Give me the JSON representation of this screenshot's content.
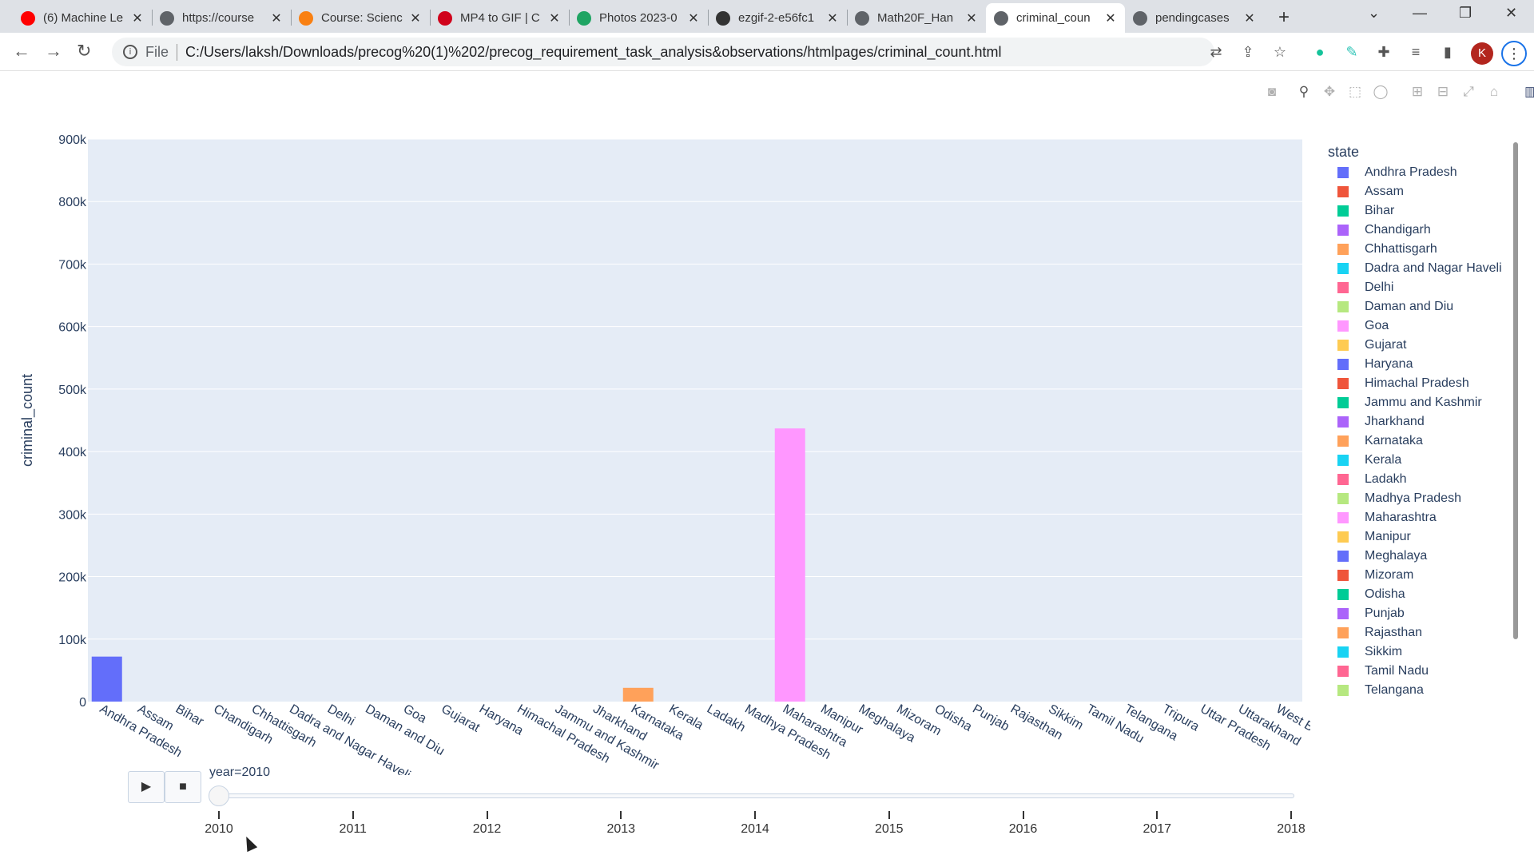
{
  "browser": {
    "tabs": [
      {
        "title": "(6) Machine Le",
        "icon": "youtube-icon",
        "color": "#ff0000"
      },
      {
        "title": "https://course",
        "icon": "globe-icon",
        "color": "#5f6368"
      },
      {
        "title": "Course: Scienc",
        "icon": "moodle-icon",
        "color": "#f98012"
      },
      {
        "title": "MP4 to GIF | C",
        "icon": "cloud-convert-icon",
        "color": "#d0021b"
      },
      {
        "title": "Photos 2023-0",
        "icon": "google-drive-icon",
        "color": "#1fa463"
      },
      {
        "title": "ezgif-2-e56fc1",
        "icon": "ezgif-icon",
        "color": "#333333"
      },
      {
        "title": "Math20F_Han",
        "icon": "globe-icon",
        "color": "#5f6368"
      },
      {
        "title": "criminal_coun",
        "icon": "globe-icon",
        "color": "#5f6368",
        "active": true
      },
      {
        "title": "pendingcases",
        "icon": "globe-icon",
        "color": "#5f6368"
      }
    ],
    "address": {
      "scheme": "File",
      "url": "C:/Users/laksh/Downloads/precog%20(1)%202/precog_requirement_task_analysis&observations/htmlpages/criminal_count.html"
    },
    "profile_initial": "K"
  },
  "chart_data": {
    "type": "bar",
    "title": "",
    "xlabel": "state",
    "ylabel": "criminal_count",
    "ylim": [
      0,
      900000
    ],
    "yticks": [
      "0",
      "100k",
      "200k",
      "300k",
      "400k",
      "500k",
      "600k",
      "700k",
      "800k",
      "900k"
    ],
    "grid": true,
    "legend_title": "state",
    "legend_position": "right",
    "categories": [
      "Andhra Pradesh",
      "Assam",
      "Bihar",
      "Chandigarh",
      "Chhattisgarh",
      "Dadra and Nagar Haveli",
      "Delhi",
      "Daman and Diu",
      "Goa",
      "Gujarat",
      "Haryana",
      "Himachal Pradesh",
      "Jammu and Kashmir",
      "Jharkhand",
      "Karnataka",
      "Kerala",
      "Ladakh",
      "Madhya Pradesh",
      "Maharashtra",
      "Manipur",
      "Meghalaya",
      "Mizoram",
      "Odisha",
      "Punjab",
      "Rajasthan",
      "Sikkim",
      "Tamil Nadu",
      "Telangana",
      "Tripura",
      "Uttar Pradesh",
      "Uttarakhand",
      "West Bengal"
    ],
    "values": [
      72000,
      0,
      0,
      0,
      0,
      0,
      0,
      0,
      0,
      0,
      0,
      0,
      0,
      0,
      22000,
      0,
      0,
      0,
      437000,
      0,
      0,
      0,
      0,
      0,
      0,
      0,
      0,
      0,
      0,
      0,
      0,
      0
    ],
    "colors": [
      "#636efa",
      "#ef553b",
      "#00cc96",
      "#ab63fa",
      "#ffa15a",
      "#19d3f3",
      "#ff6692",
      "#b6e880",
      "#ff97ff",
      "#fecb52",
      "#636efa",
      "#ef553b",
      "#00cc96",
      "#ab63fa",
      "#ffa15a",
      "#19d3f3",
      "#ff6692",
      "#b6e880",
      "#ff97ff",
      "#fecb52",
      "#636efa",
      "#ef553b",
      "#00cc96",
      "#ab63fa",
      "#ffa15a",
      "#19d3f3",
      "#ff6692",
      "#b6e880",
      "#ff97ff",
      "#fecb52",
      "#636efa",
      "#ef553b"
    ]
  },
  "legend": {
    "title": "state",
    "visible_items": [
      "Andhra Pradesh",
      "Assam",
      "Bihar",
      "Chandigarh",
      "Chhattisgarh",
      "Dadra and Nagar Haveli",
      "Delhi",
      "Daman and Diu",
      "Goa",
      "Gujarat",
      "Haryana",
      "Himachal Pradesh",
      "Jammu and Kashmir",
      "Jharkhand",
      "Karnataka",
      "Kerala",
      "Ladakh",
      "Madhya Pradesh",
      "Maharashtra",
      "Manipur",
      "Meghalaya",
      "Mizoram",
      "Odisha",
      "Punjab",
      "Rajasthan",
      "Sikkim",
      "Tamil Nadu",
      "Telangana"
    ]
  },
  "animation": {
    "current_label": "year=2010",
    "play_symbol": "▶",
    "stop_symbol": "■",
    "steps": [
      "2010",
      "2011",
      "2012",
      "2013",
      "2014",
      "2015",
      "2016",
      "2017",
      "2018"
    ],
    "current_step": "2010"
  }
}
